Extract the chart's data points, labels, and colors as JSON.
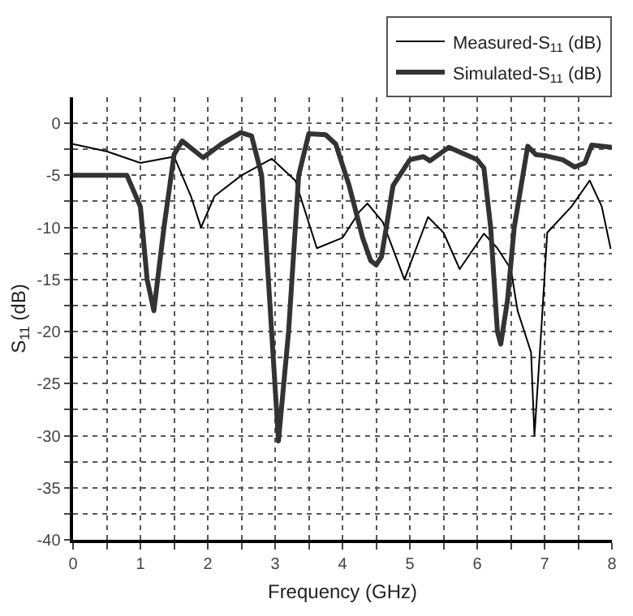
{
  "chart_data": {
    "type": "line",
    "xlabel": "Frequency (GHz)",
    "ylabel": "S$_{11}$ (dB)",
    "xlim": [
      0,
      8
    ],
    "ylim": [
      -40,
      2.5
    ],
    "xticks": [
      0,
      {
        "value": 0.5,
        "label": null
      },
      1,
      {
        "value": 1.5,
        "label": null
      },
      2,
      {
        "value": 2.5,
        "label": null
      },
      3,
      {
        "value": 3.5,
        "label": null
      },
      4,
      {
        "value": 4.5,
        "label": null
      },
      5,
      {
        "value": 5.5,
        "label": null
      },
      6,
      {
        "value": 6.5,
        "label": null
      },
      7,
      {
        "value": 7.5,
        "label": null
      },
      8
    ],
    "yticks": [
      -40,
      {
        "value": -37.5,
        "label": null
      },
      -35,
      {
        "value": -32.5,
        "label": null
      },
      -30,
      {
        "value": -27.5,
        "label": null
      },
      -25,
      {
        "value": -22.5,
        "label": null
      },
      -20,
      {
        "value": -17.5,
        "label": null
      },
      -15,
      {
        "value": -12.5,
        "label": null
      },
      -10,
      {
        "value": -7.5,
        "label": null
      },
      -5,
      {
        "value": -2.5,
        "label": null
      },
      0
    ],
    "grid": true,
    "legend": "top right",
    "series": [
      {
        "name": "Measured-S$_{11}$ (dB)",
        "color": "#000000",
        "x": [
          0,
          0.5,
          1.0,
          1.5,
          1.75,
          1.9,
          2.1,
          2.5,
          2.95,
          3.3,
          3.62,
          4.0,
          4.25,
          4.37,
          4.6,
          4.92,
          5.27,
          5.5,
          5.74,
          6.1,
          6.3,
          6.5,
          6.6,
          6.7,
          6.8,
          6.85,
          6.95,
          7.04,
          7.4,
          7.67,
          7.85,
          7.98
        ],
        "values": [
          -2,
          -2.7,
          -3.8,
          -3.2,
          -7,
          -10,
          -7,
          -5,
          -3.4,
          -5.5,
          -12,
          -11,
          -8.5,
          -7.7,
          -9.5,
          -15,
          -9,
          -10.5,
          -14,
          -10.6,
          -12,
          -14,
          -18,
          -20,
          -22,
          -30,
          -20,
          -10.5,
          -8,
          -5.5,
          -8,
          -12
        ]
      },
      {
        "name": "Simulated-S$_{11}$ (dB)",
        "color": "#333333",
        "x": [
          0,
          0.8,
          1.0,
          1.1,
          1.2,
          1.35,
          1.5,
          1.62,
          1.93,
          2.2,
          2.49,
          2.65,
          2.8,
          2.9,
          3.05,
          3.2,
          3.35,
          3.5,
          3.75,
          3.9,
          4.1,
          4.3,
          4.42,
          4.5,
          4.58,
          4.75,
          5.0,
          5.2,
          5.3,
          5.58,
          6.0,
          6.1,
          6.2,
          6.3,
          6.35,
          6.45,
          6.55,
          6.75,
          6.87,
          7.0,
          7.27,
          7.45,
          7.6,
          7.7,
          8.0
        ],
        "values": [
          -5,
          -5,
          -8,
          -15,
          -18,
          -10,
          -3,
          -1.7,
          -3.3,
          -2,
          -0.9,
          -1.2,
          -5,
          -15,
          -30.5,
          -20,
          -5,
          -1,
          -1.1,
          -2,
          -6,
          -11,
          -13.2,
          -13.6,
          -12.8,
          -6,
          -3.5,
          -3.2,
          -3.6,
          -2.3,
          -3.5,
          -4.3,
          -10,
          -20,
          -21.2,
          -17,
          -10,
          -2.2,
          -3,
          -3.1,
          -3.5,
          -4.2,
          -3.8,
          -2.1,
          -2.3
        ]
      }
    ]
  }
}
